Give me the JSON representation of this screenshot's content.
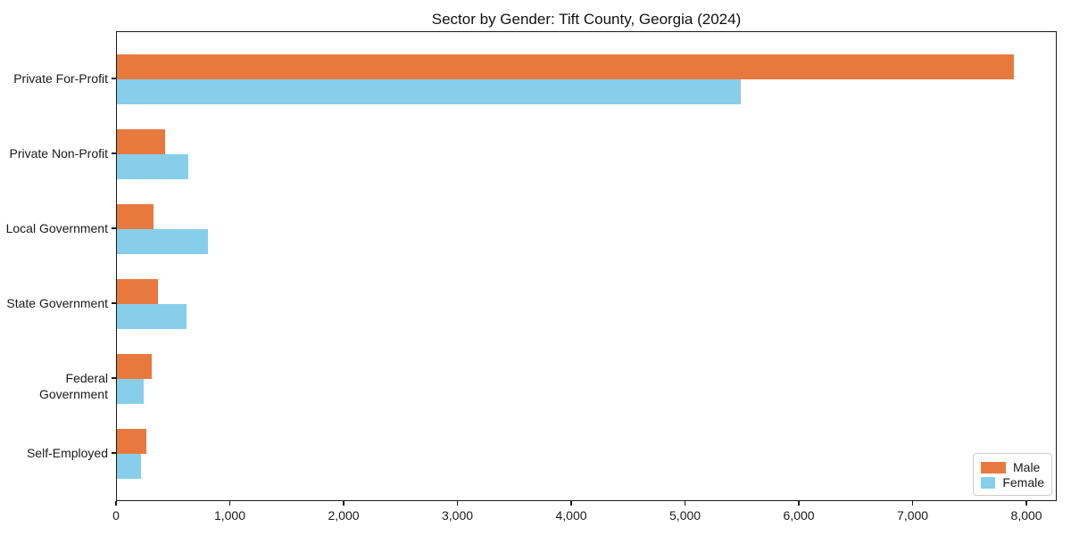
{
  "chart_data": {
    "type": "bar",
    "orientation": "horizontal",
    "title": "Sector by Gender: Tift County, Georgia (2024)",
    "categories": [
      "Private For-Profit",
      "Private Non-Profit",
      "Local Government",
      "State Government",
      "Federal Government",
      "Self-Employed"
    ],
    "series": [
      {
        "name": "Male",
        "color": "#e8793e",
        "values": [
          7880,
          425,
          325,
          360,
          305,
          255
        ]
      },
      {
        "name": "Female",
        "color": "#87ceeb",
        "values": [
          5480,
          625,
          800,
          615,
          235,
          210
        ]
      }
    ],
    "xlabel": "",
    "ylabel": "",
    "xlim": [
      0,
      8266
    ],
    "xticks": [
      0,
      1000,
      2000,
      3000,
      4000,
      5000,
      6000,
      7000,
      8000
    ],
    "xtick_labels": [
      "0",
      "1,000",
      "2,000",
      "3,000",
      "4,000",
      "5,000",
      "6,000",
      "7,000",
      "8,000"
    ],
    "grid": false,
    "legend_position": "lower right",
    "axis_color": "#1a1a1a"
  }
}
